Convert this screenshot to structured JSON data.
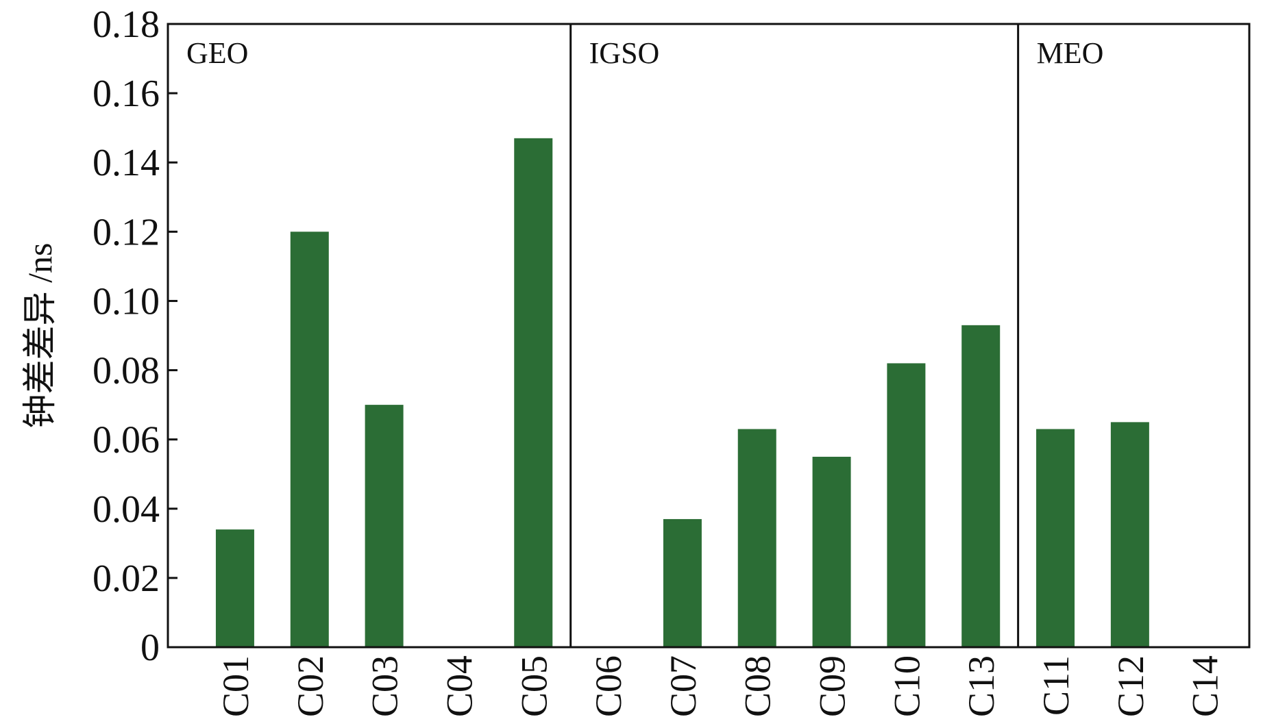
{
  "colors": {
    "bar": "#2b6d35",
    "axis": "#111111",
    "background": "#ffffff"
  },
  "chart_data": {
    "type": "bar",
    "title": "",
    "xlabel": "",
    "ylabel": "钟差差异 /ns",
    "ylim": [
      0,
      0.18
    ],
    "yticks": [
      0,
      0.02,
      0.04,
      0.06,
      0.08,
      0.1,
      0.12,
      0.14,
      0.16,
      0.18
    ],
    "ytick_labels": [
      "0",
      "0.02",
      "0.04",
      "0.06",
      "0.08",
      "0.10",
      "0.12",
      "0.14",
      "0.16",
      "0.18"
    ],
    "categories": [
      "C01",
      "C02",
      "C03",
      "C04",
      "C05",
      "C06",
      "C07",
      "C08",
      "C09",
      "C10",
      "C13",
      "C11",
      "C12",
      "C14"
    ],
    "values": [
      0.034,
      0.12,
      0.07,
      0,
      0.147,
      0,
      0.037,
      0.063,
      0.055,
      0.082,
      0.093,
      0.063,
      0.065,
      0
    ],
    "groups": [
      {
        "label": "GEO",
        "categories": [
          "C01",
          "C02",
          "C03",
          "C04",
          "C05"
        ]
      },
      {
        "label": "IGSO",
        "categories": [
          "C06",
          "C07",
          "C08",
          "C09",
          "C10",
          "C13"
        ]
      },
      {
        "label": "MEO",
        "categories": [
          "C11",
          "C12",
          "C14"
        ]
      }
    ],
    "grid": false,
    "legend": "none"
  }
}
